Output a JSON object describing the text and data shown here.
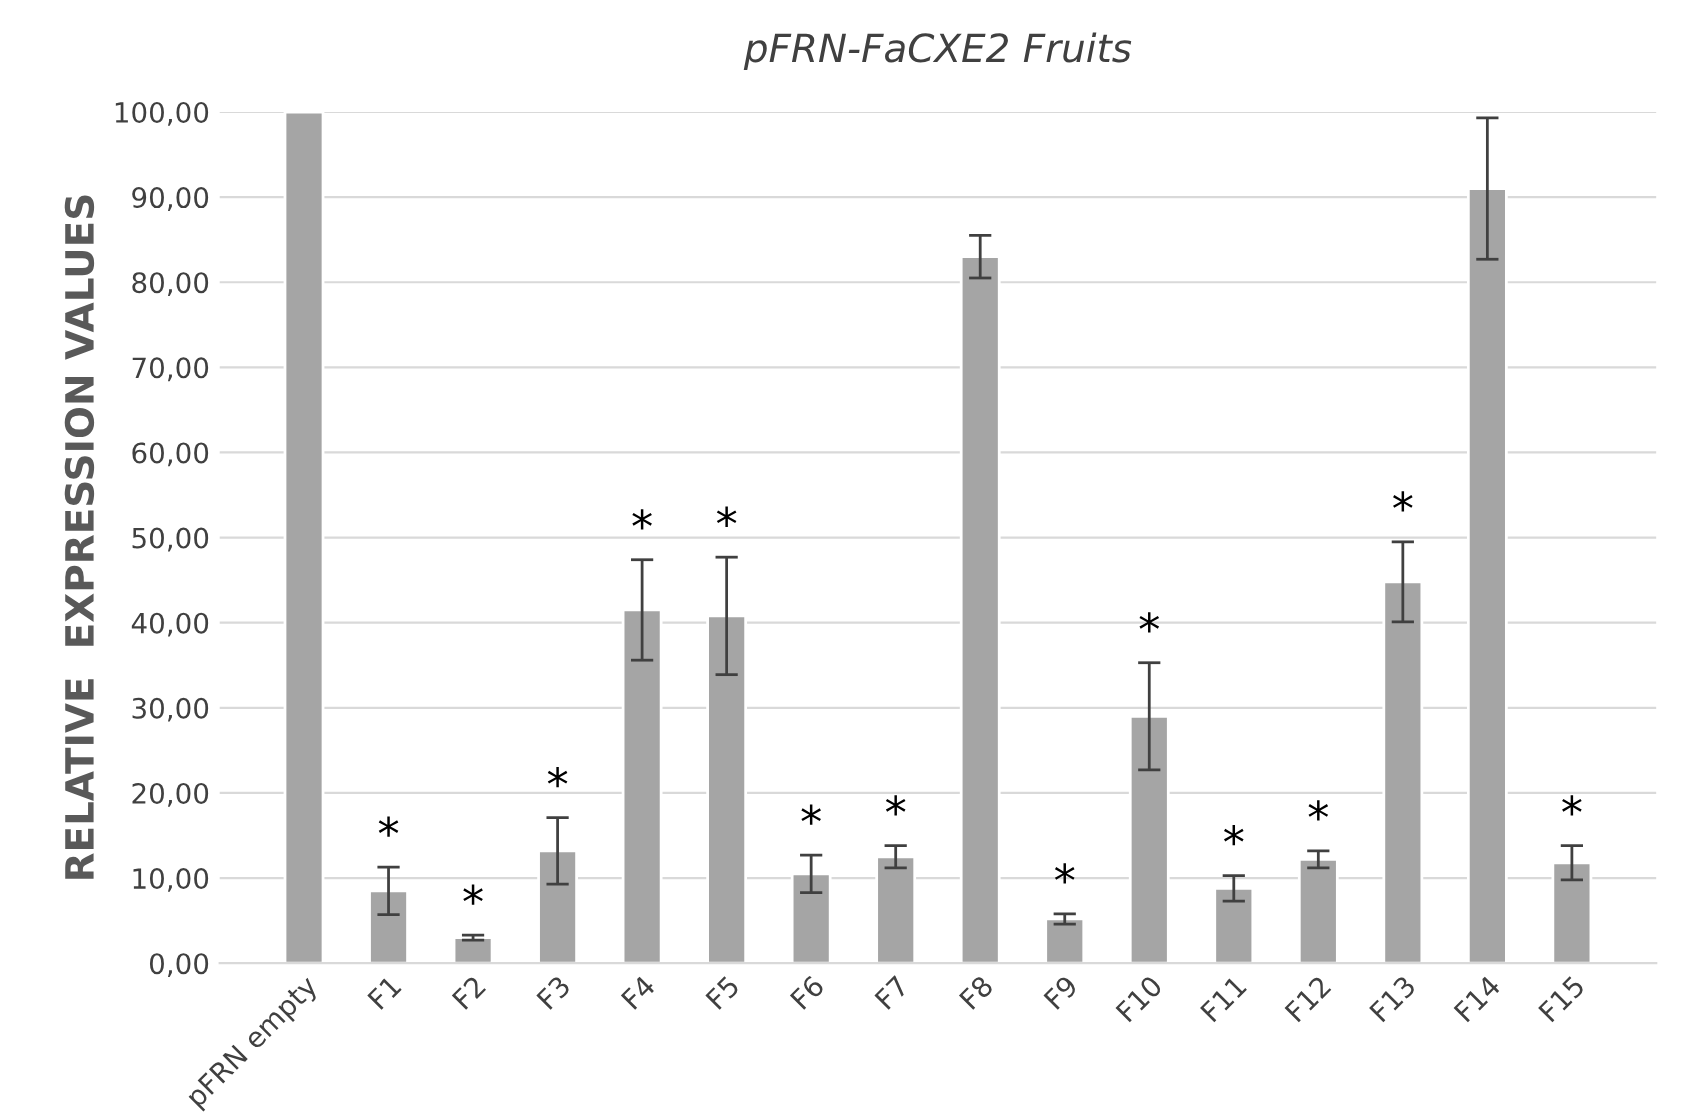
{
  "chart_data": {
    "type": "bar",
    "title": "pFRN-FaCXE2 Fruits",
    "ylabel": "RELATIVE  EXPRESSION VALUES",
    "categories": [
      "pFRN empty",
      "F1",
      "F2",
      "F3",
      "F4",
      "F5",
      "F6",
      "F7",
      "F8",
      "F9",
      "F10",
      "F11",
      "F12",
      "F13",
      "F14",
      "F15"
    ],
    "values": [
      100,
      8.5,
      3.0,
      13.2,
      41.5,
      40.8,
      10.5,
      12.5,
      83,
      5.2,
      29,
      8.8,
      12.2,
      44.8,
      91,
      11.8
    ],
    "errors": [
      null,
      2.8,
      0.3,
      3.9,
      5.9,
      6.9,
      2.2,
      1.3,
      2.5,
      0.6,
      6.3,
      1.5,
      1.0,
      4.7,
      8.3,
      2.0
    ],
    "color": "#a5a5a5",
    "ylim": [
      0,
      100
    ],
    "yticks": [
      {
        "value": 0,
        "label": "0,00"
      },
      {
        "value": 10,
        "label": "10,00"
      },
      {
        "value": 20,
        "label": "20,00"
      },
      {
        "value": 30,
        "label": "30,00"
      },
      {
        "value": 40,
        "label": "40,00"
      },
      {
        "value": 50,
        "label": "50,00"
      },
      {
        "value": 60,
        "label": "60,00"
      },
      {
        "value": 70,
        "label": "70,00"
      },
      {
        "value": 80,
        "label": "80,00"
      },
      {
        "value": 90,
        "label": "90,00"
      },
      {
        "value": 100,
        "label": "100,00"
      }
    ],
    "grid": "y",
    "value_labels": [
      null,
      "*",
      "*",
      "*",
      "*",
      "*",
      "*",
      "*",
      null,
      "*",
      "*",
      "*",
      "*",
      "*",
      null,
      "*"
    ]
  }
}
